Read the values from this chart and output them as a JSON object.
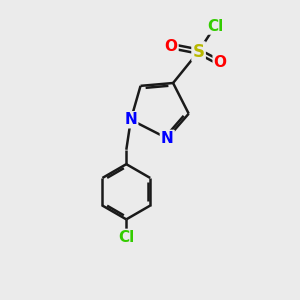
{
  "background_color": "#ebebeb",
  "bond_color": "#1a1a1a",
  "bond_width": 1.8,
  "atom_colors": {
    "N": "#0000ff",
    "O": "#ff0000",
    "S": "#b8b800",
    "Cl_green": "#33cc00",
    "Cl_bottom": "#33cc00"
  },
  "font_size_atoms": 11,
  "fig_w": 3.0,
  "fig_h": 3.0,
  "dpi": 100,
  "xlim": [
    0,
    10
  ],
  "ylim": [
    0,
    10
  ]
}
